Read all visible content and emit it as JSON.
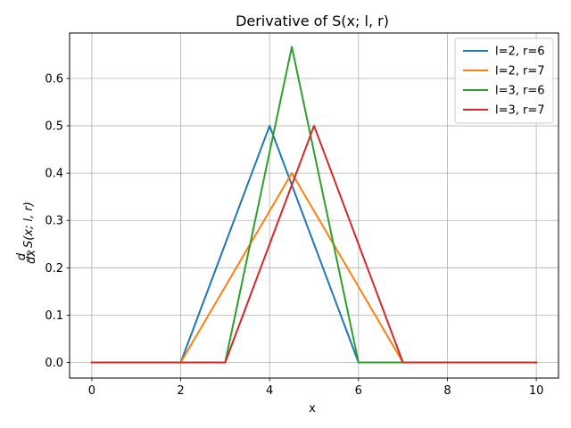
{
  "chart_data": {
    "type": "line",
    "title": "Derivative of S(x; l, r)",
    "xlabel": "x",
    "ylabel_parts": {
      "prefix_top": "d",
      "prefix_bottom": "dx",
      "body": "S(x; l, r)"
    },
    "xlim": [
      -0.5,
      10.5
    ],
    "ylim": [
      -0.033,
      0.696
    ],
    "xticks": [
      0,
      2,
      4,
      6,
      8,
      10
    ],
    "xtick_labels": [
      "0",
      "2",
      "4",
      "6",
      "8",
      "10"
    ],
    "yticks": [
      0.0,
      0.1,
      0.2,
      0.3,
      0.4,
      0.5,
      0.6
    ],
    "ytick_labels": [
      "0.0",
      "0.1",
      "0.2",
      "0.3",
      "0.4",
      "0.5",
      "0.6"
    ],
    "grid": true,
    "legend_position": "top-right",
    "series": [
      {
        "name": "l=2, r=6",
        "color": "#1f77b4",
        "x": [
          0,
          2,
          4,
          6,
          10
        ],
        "y": [
          0,
          0,
          0.5,
          0,
          0
        ]
      },
      {
        "name": "l=2, r=7",
        "color": "#ff7f0e",
        "x": [
          0,
          2,
          4.5,
          7,
          10
        ],
        "y": [
          0,
          0,
          0.4,
          0,
          0
        ]
      },
      {
        "name": "l=3, r=6",
        "color": "#2ca02c",
        "x": [
          0,
          3,
          4.5,
          6,
          10
        ],
        "y": [
          0,
          0,
          0.6667,
          0,
          0
        ]
      },
      {
        "name": "l=3, r=7",
        "color": "#d62728",
        "x": [
          0,
          3,
          5,
          7,
          10
        ],
        "y": [
          0,
          0,
          0.5,
          0,
          0
        ]
      }
    ]
  }
}
